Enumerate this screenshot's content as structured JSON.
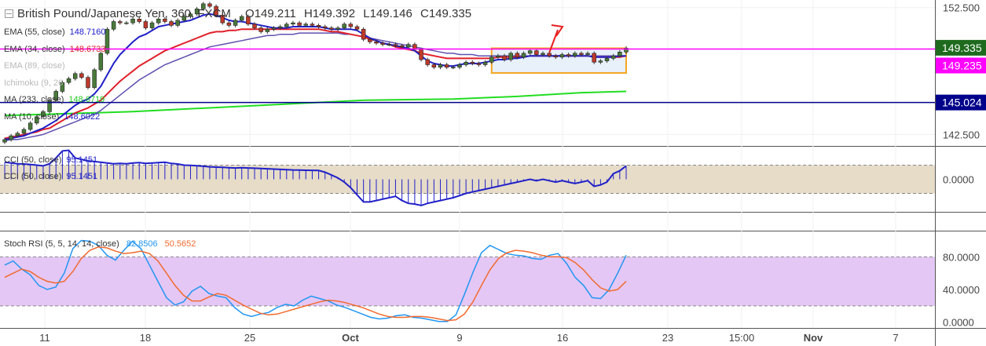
{
  "header": {
    "symbol": "British Pound/Japanese Yen, 360, FXCM",
    "open_label": "O",
    "open": "149.211",
    "high_label": "H",
    "high": "149.392",
    "low_label": "L",
    "low": "149.146",
    "close_label": "C",
    "close": "149.335"
  },
  "indicators_legend": [
    {
      "label": "EMA (55, close)",
      "value": "148.7160",
      "color": "#2020c8",
      "faded": false
    },
    {
      "label": "EMA (34, close)",
      "value": "148.6733",
      "color": "#e0202a",
      "faded": false
    },
    {
      "label": "EMA (89, close)",
      "value": "",
      "color": "#bbbbbb",
      "faded": true
    },
    {
      "label": "Ichimoku (9, 26",
      "value": "",
      "color": "#bbbbbb",
      "faded": true
    },
    {
      "label": "MA (233, close)",
      "value": "148.6719",
      "color": "#22cc22",
      "faded": false
    },
    {
      "label": "MA (10, close)",
      "value": "148.6022",
      "color": "#2020c8",
      "faded": false
    }
  ],
  "cci_legend": [
    {
      "label": "CCI (50, close)",
      "value": "95.1451",
      "color": "#2020c8"
    },
    {
      "label": "CCI (50, close)",
      "value": "95.1451",
      "color": "#2020c8"
    }
  ],
  "stoch_legend": {
    "label": "Stoch RSI (5, 5, 14, 14, close)",
    "k_value": "82.8506",
    "k_color": "#2196f3",
    "d_value": "50.5652",
    "d_color": "#f26a2e"
  },
  "colors": {
    "up": "#4a7a3a",
    "down": "#c0392b",
    "ema55": "#2020c8",
    "ema34": "#e0202a",
    "ema89": "#6050b0",
    "ma233": "#22dd22",
    "magenta": "#ff00ff",
    "navy": "#00008b",
    "price_tag": "#1e6b1e",
    "cci": "#2020c8",
    "stoch_k": "#2196f3",
    "stoch_d": "#f26a2e",
    "band_fill": "#e6dcc8",
    "stoch_band": "#e4c7f5",
    "orange_box": "#f5a623",
    "arrow": "#e81e1e"
  },
  "chart_data": [
    {
      "type": "candlestick",
      "title": "British Pound/Japanese Yen, 360, FXCM",
      "x_ticks": [
        "11",
        "18",
        "25",
        "Oct",
        "9",
        "16",
        "23",
        "15:00",
        "Nov",
        "7"
      ],
      "y_ticks": [
        "152.500",
        "142.500"
      ],
      "ylim": [
        141.6,
        153.1
      ],
      "last_close": 149.335,
      "price_labels": [
        {
          "value": 149.335,
          "text": "149.335",
          "color": "#1e6b1e"
        },
        {
          "value": 149.235,
          "text": "149.235",
          "color": "#ff00ff"
        },
        {
          "value": 145.024,
          "text": "145.024",
          "color": "#00008b"
        }
      ],
      "horizontal_lines": [
        {
          "value": 149.235,
          "color": "#ff00ff"
        },
        {
          "value": 145.024,
          "color": "#00008b"
        }
      ],
      "range_box": {
        "start_index": 76,
        "end_index": 97,
        "top": 149.3,
        "bottom": 147.35
      },
      "closes": [
        142.1,
        142.4,
        142.6,
        142.9,
        143.4,
        143.9,
        144.3,
        145.2,
        145.9,
        146.6,
        146.9,
        147.3,
        147.0,
        146.2,
        147.6,
        148.9,
        150.8,
        151.4,
        151.3,
        151.3,
        151.6,
        151.4,
        150.9,
        151.3,
        151.6,
        151.4,
        151.1,
        151.5,
        151.8,
        152.0,
        152.4,
        152.8,
        152.6,
        151.9,
        151.3,
        151.1,
        151.5,
        151.8,
        151.2,
        150.9,
        150.6,
        150.8,
        150.9,
        151.0,
        151.2,
        151.3,
        151.1,
        151.2,
        151.1,
        151.0,
        150.9,
        150.8,
        150.9,
        151.2,
        151.0,
        150.8,
        150.0,
        149.8,
        149.7,
        149.6,
        149.6,
        149.5,
        149.4,
        149.6,
        149.2,
        148.4,
        148.0,
        147.8,
        148.0,
        147.8,
        147.8,
        148.0,
        148.2,
        148.1,
        148.0,
        148.2,
        148.6,
        148.7,
        148.4,
        148.9,
        148.6,
        148.9,
        149.1,
        148.8,
        148.9,
        148.7,
        148.6,
        148.8,
        148.7,
        148.9,
        148.8,
        148.9,
        148.2,
        148.3,
        148.5,
        148.7,
        149.0,
        149.3
      ],
      "ema55": [
        142.1,
        142.2,
        142.3,
        142.4,
        142.6,
        142.8,
        143.0,
        143.3,
        143.6,
        144.0,
        144.4,
        144.8,
        145.1,
        145.3,
        145.7,
        146.3,
        147.2,
        148.1,
        148.8,
        149.3,
        149.8,
        150.2,
        150.4,
        150.7,
        151.0,
        151.1,
        151.2,
        151.3,
        151.4,
        151.5,
        151.7,
        151.9,
        152.0,
        151.9,
        151.7,
        151.5,
        151.4,
        151.4,
        151.3,
        151.2,
        151.1,
        151.0,
        150.9,
        150.9,
        150.9,
        151.0,
        151.0,
        151.0,
        151.0,
        151.0,
        150.9,
        150.8,
        150.8,
        150.8,
        150.8,
        150.7,
        150.4,
        150.1,
        149.9,
        149.7,
        149.6,
        149.5,
        149.4,
        149.3,
        149.1,
        148.7,
        148.3,
        148.1,
        148.0,
        147.9,
        147.9,
        148.0,
        148.1,
        148.1,
        148.1,
        148.2,
        148.3,
        148.4,
        148.4,
        148.5,
        148.5,
        148.6,
        148.7,
        148.7,
        148.7,
        148.7,
        148.7,
        148.7,
        148.7,
        148.7,
        148.7,
        148.7,
        148.6,
        148.6,
        148.6,
        148.6,
        148.7,
        148.7
      ],
      "ema34": [
        142.2,
        142.3,
        142.4,
        142.5,
        142.6,
        142.7,
        142.9,
        143.0,
        143.3,
        143.6,
        143.9,
        144.2,
        144.4,
        144.6,
        144.9,
        145.2,
        145.7,
        146.2,
        146.7,
        147.1,
        147.5,
        147.9,
        148.2,
        148.5,
        148.8,
        149.1,
        149.3,
        149.5,
        149.7,
        149.9,
        150.1,
        150.3,
        150.5,
        150.6,
        150.6,
        150.7,
        150.7,
        150.8,
        150.8,
        150.8,
        150.8,
        150.8,
        150.8,
        150.8,
        150.8,
        150.8,
        150.8,
        150.8,
        150.8,
        150.8,
        150.7,
        150.6,
        150.6,
        150.5,
        150.4,
        150.3,
        150.2,
        150.0,
        149.9,
        149.7,
        149.6,
        149.4,
        149.3,
        149.2,
        149.1,
        148.9,
        148.8,
        148.7,
        148.6,
        148.5,
        148.5,
        148.5,
        148.5,
        148.5,
        148.5,
        148.5,
        148.5,
        148.6,
        148.6,
        148.6,
        148.6,
        148.6,
        148.7,
        148.7,
        148.7,
        148.7,
        148.7,
        148.7,
        148.7,
        148.7,
        148.7,
        148.7,
        148.6,
        148.6,
        148.6,
        148.6,
        148.6,
        148.7
      ],
      "ema89": [
        142.0,
        142.1,
        142.1,
        142.2,
        142.3,
        142.4,
        142.5,
        142.7,
        142.9,
        143.1,
        143.3,
        143.5,
        143.7,
        143.9,
        144.1,
        144.4,
        144.8,
        145.2,
        145.6,
        146.0,
        146.4,
        146.8,
        147.1,
        147.4,
        147.7,
        148.0,
        148.2,
        148.4,
        148.6,
        148.8,
        149.0,
        149.2,
        149.4,
        149.5,
        149.6,
        149.7,
        149.8,
        149.9,
        150.0,
        150.1,
        150.2,
        150.3,
        150.3,
        150.4,
        150.4,
        150.4,
        150.5,
        150.5,
        150.5,
        150.5,
        150.5,
        150.5,
        150.5,
        150.4,
        150.4,
        150.3,
        150.2,
        150.1,
        150.0,
        149.9,
        149.8,
        149.7,
        149.6,
        149.5,
        149.4,
        149.3,
        149.2,
        149.1,
        149.0,
        148.9,
        148.9,
        148.8,
        148.8,
        148.8,
        148.7,
        148.7,
        148.7,
        148.7,
        148.7,
        148.7,
        148.7,
        148.7,
        148.7,
        148.7,
        148.7,
        148.7,
        148.7,
        148.7,
        148.7,
        148.7,
        148.7,
        148.7,
        148.7,
        148.7,
        148.7,
        148.7,
        148.7,
        148.7
      ],
      "ma233_points": [
        [
          0,
          144.0
        ],
        [
          20,
          144.3
        ],
        [
          40,
          144.8
        ],
        [
          56,
          145.2
        ],
        [
          70,
          145.3
        ],
        [
          80,
          145.5
        ],
        [
          90,
          145.8
        ],
        [
          97,
          145.9
        ]
      ]
    },
    {
      "type": "line",
      "title": "CCI (50, close)",
      "y_ticks": [
        "0.0000"
      ],
      "ylim": [
        -230,
        230
      ],
      "band": [
        -100,
        100
      ],
      "values": [
        120,
        115,
        110,
        108,
        105,
        100,
        95,
        110,
        150,
        200,
        205,
        150,
        140,
        130,
        125,
        120,
        115,
        110,
        112,
        110,
        115,
        118,
        112,
        115,
        118,
        120,
        112,
        108,
        100,
        98,
        96,
        92,
        88,
        86,
        84,
        82,
        80,
        82,
        80,
        78,
        76,
        74,
        72,
        70,
        68,
        66,
        65,
        64,
        63,
        62,
        50,
        30,
        10,
        -20,
        -60,
        -110,
        -160,
        -160,
        -150,
        -140,
        -130,
        -120,
        -150,
        -170,
        -175,
        -185,
        -170,
        -160,
        -150,
        -140,
        -130,
        -115,
        -100,
        -90,
        -80,
        -70,
        -60,
        -50,
        -40,
        -30,
        -20,
        -10,
        0,
        -10,
        0,
        -10,
        -20,
        -10,
        -20,
        -30,
        -20,
        -10,
        -50,
        -40,
        -20,
        40,
        60,
        95
      ]
    },
    {
      "type": "line",
      "title": "Stoch RSI (5, 5, 14, 14, close)",
      "y_ticks": [
        "80.0000",
        "40.0000",
        "0.0000"
      ],
      "ylim": [
        -7,
        112
      ],
      "band": [
        20,
        80
      ],
      "series": [
        {
          "name": "Stoch RSI",
          "values": [
            70,
            75,
            65,
            58,
            45,
            40,
            43,
            60,
            90,
            100,
            99,
            94,
            82,
            76,
            88,
            99,
            90,
            70,
            50,
            30,
            21,
            25,
            38,
            44,
            35,
            32,
            30,
            18,
            10,
            7,
            10,
            12,
            18,
            22,
            20,
            27,
            32,
            29,
            26,
            21,
            18,
            14,
            10,
            6,
            4,
            5,
            8,
            9,
            6,
            5,
            3,
            1,
            1,
            9,
            34,
            61,
            85,
            94,
            89,
            84,
            82,
            81,
            78,
            77,
            82,
            84,
            72,
            55,
            45,
            30,
            29,
            40,
            60,
            82
          ]
        },
        {
          "name": "",
          "values": [
            55,
            60,
            65,
            62,
            55,
            50,
            48,
            50,
            62,
            78,
            88,
            92,
            91,
            87,
            84,
            85,
            87,
            84,
            75,
            60,
            45,
            33,
            26,
            26,
            31,
            35,
            33,
            27,
            21,
            16,
            11,
            9,
            10,
            13,
            16,
            19,
            22,
            25,
            27,
            26,
            24,
            21,
            18,
            14,
            10,
            7,
            6,
            6,
            7,
            7,
            6,
            4,
            2,
            3,
            10,
            25,
            45,
            64,
            78,
            85,
            88,
            87,
            85,
            82,
            80,
            80,
            79,
            73,
            64,
            52,
            42,
            38,
            40,
            50
          ]
        }
      ]
    }
  ]
}
